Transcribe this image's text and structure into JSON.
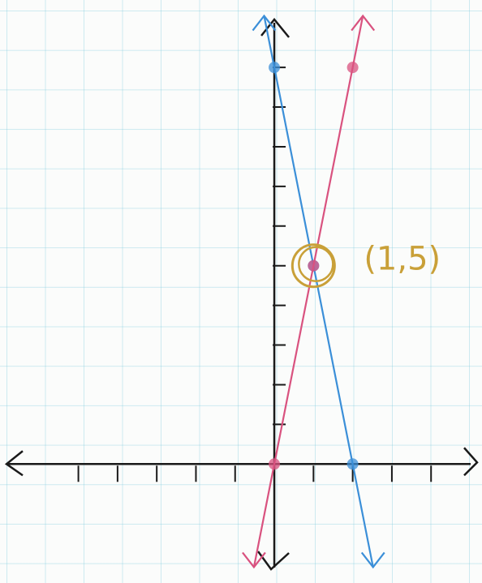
{
  "chart_data": {
    "type": "line",
    "series": [
      {
        "color": "#3b8fd8",
        "x": [
          0,
          1,
          2
        ],
        "values": [
          10,
          5,
          0
        ]
      },
      {
        "color": "#d9527f",
        "x": [
          0,
          1,
          2
        ],
        "values": [
          0,
          5,
          10
        ]
      }
    ],
    "xlim": [
      -7,
      5.3
    ],
    "ylim": [
      -3,
      11.7
    ],
    "xticks": [
      -5,
      -4,
      -3,
      -2,
      -1,
      1,
      2,
      3,
      4
    ],
    "yticks": [
      1,
      2,
      3,
      4,
      5,
      6,
      7,
      8,
      9,
      10
    ],
    "annotations": [
      {
        "text": "(1,5)",
        "x": 1,
        "y": 5,
        "color": "#c9a038"
      }
    ]
  }
}
